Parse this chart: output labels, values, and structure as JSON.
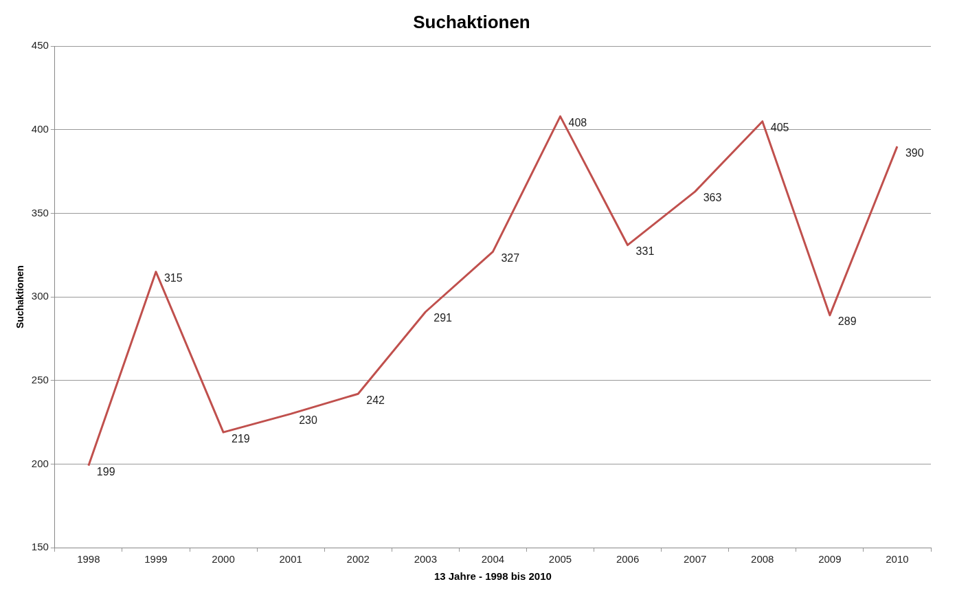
{
  "chart_data": {
    "type": "line",
    "title": "Suchaktionen",
    "xlabel": "13 Jahre - 1998 bis 2010",
    "ylabel": "Suchaktionen",
    "categories": [
      "1998",
      "1999",
      "2000",
      "2001",
      "2002",
      "2003",
      "2004",
      "2005",
      "2006",
      "2007",
      "2008",
      "2009",
      "2010"
    ],
    "series": [
      {
        "color": "#c0504d",
        "values": [
          199,
          315,
          219,
          230,
          242,
          291,
          327,
          408,
          331,
          363,
          405,
          289,
          390
        ]
      }
    ],
    "ylim": [
      150,
      450
    ],
    "yticks": [
      150,
      200,
      250,
      300,
      350,
      400,
      450
    ],
    "grid": "y",
    "legend": false,
    "marker": "none",
    "line_style": "solid",
    "data_labels": true
  }
}
